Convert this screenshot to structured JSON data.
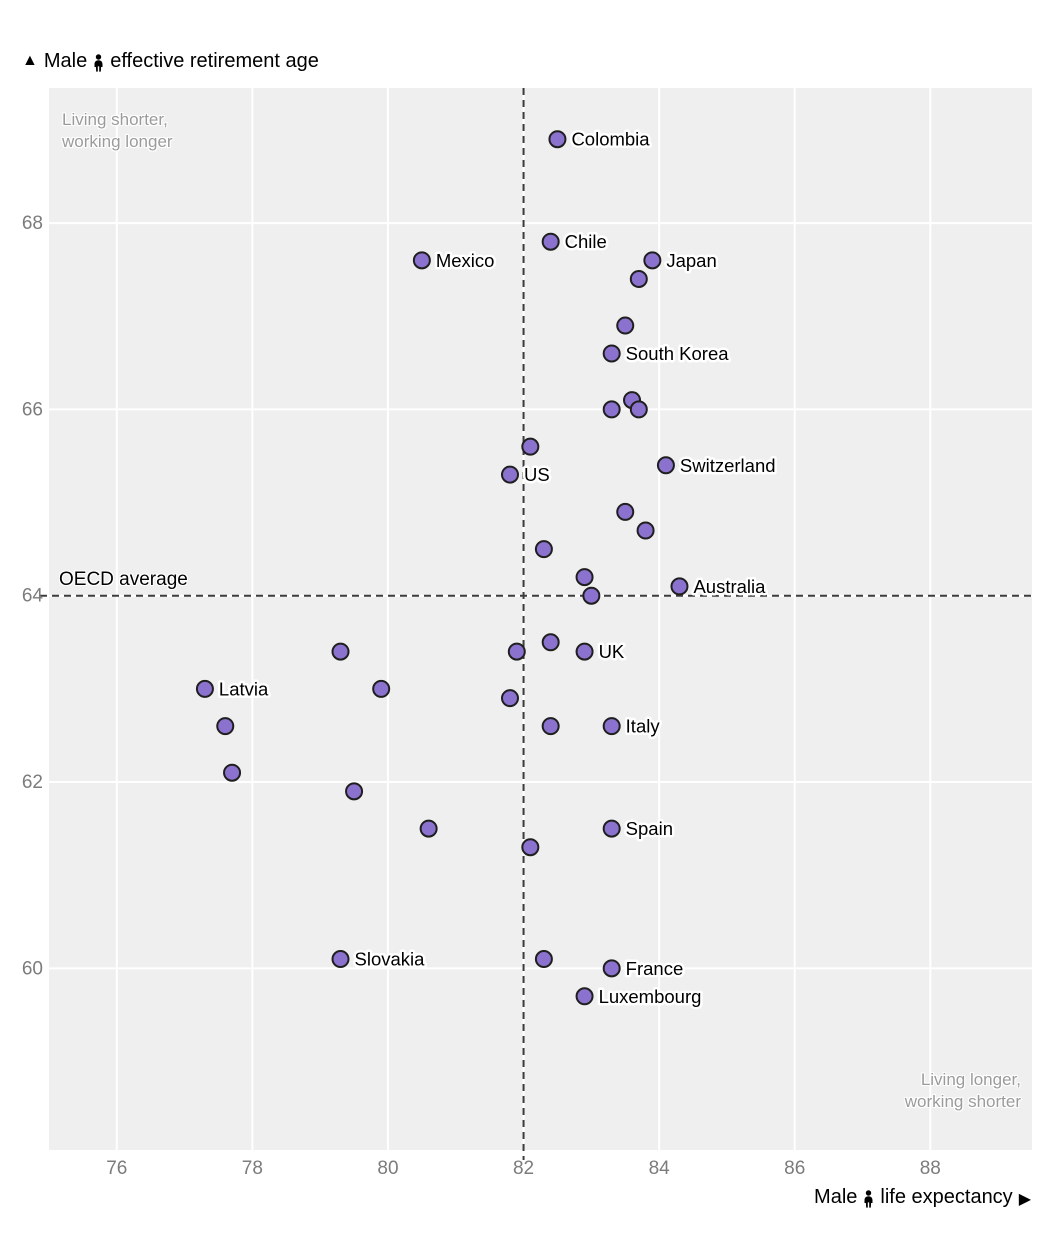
{
  "title": {
    "arrow": "▲",
    "male": "Male",
    "rest": "effective retirement age"
  },
  "x_axis_label": {
    "male": "Male",
    "rest": "life expectancy",
    "arrow": "▶"
  },
  "annotations": {
    "top_left_line1": "Living shorter,",
    "top_left_line2": "working longer",
    "bottom_right_line1": "Living longer,",
    "bottom_right_line2": "working shorter",
    "oecd_average": "OECD average"
  },
  "colors": {
    "plot_bg": "#efefef",
    "gridline": "#ffffff",
    "dashed_line": "#3c3c3c",
    "tick_text": "#7c7c7c",
    "point_fill": "#8b72ce",
    "point_stroke": "#1f1f1f",
    "label_text": "#000000",
    "annotation_text": "#9b9b9b"
  },
  "chart_data": {
    "type": "scatter",
    "x_label": "Male life expectancy",
    "y_label": "Male effective retirement age",
    "x_ticks": [
      76,
      78,
      80,
      82,
      84,
      86,
      88
    ],
    "y_ticks": [
      60,
      62,
      64,
      66,
      68
    ],
    "x_range": [
      75.0,
      89.5
    ],
    "y_range": [
      58.05,
      69.45
    ],
    "grid": true,
    "oecd_average": {
      "x": 82.0,
      "y": 64.0
    },
    "points": [
      {
        "label": "Colombia",
        "x": 82.5,
        "y": 68.9
      },
      {
        "label": "Chile",
        "x": 82.4,
        "y": 67.8
      },
      {
        "label": "Mexico",
        "x": 80.5,
        "y": 67.6
      },
      {
        "label": "Japan",
        "x": 83.9,
        "y": 67.6
      },
      {
        "label": "",
        "x": 83.7,
        "y": 67.4
      },
      {
        "label": "",
        "x": 83.5,
        "y": 66.9
      },
      {
        "label": "South Korea",
        "x": 83.3,
        "y": 66.6
      },
      {
        "label": "",
        "x": 83.6,
        "y": 66.1
      },
      {
        "label": "",
        "x": 83.3,
        "y": 66.0
      },
      {
        "label": "",
        "x": 83.7,
        "y": 66.0
      },
      {
        "label": "",
        "x": 82.1,
        "y": 65.6
      },
      {
        "label": "Switzerland",
        "x": 84.1,
        "y": 65.4
      },
      {
        "label": "US",
        "x": 81.8,
        "y": 65.3
      },
      {
        "label": "",
        "x": 83.5,
        "y": 64.9
      },
      {
        "label": "",
        "x": 83.8,
        "y": 64.7
      },
      {
        "label": "",
        "x": 82.3,
        "y": 64.5
      },
      {
        "label": "",
        "x": 82.9,
        "y": 64.2
      },
      {
        "label": "Australia",
        "x": 84.3,
        "y": 64.1
      },
      {
        "label": "",
        "x": 83.0,
        "y": 64.0
      },
      {
        "label": "",
        "x": 82.4,
        "y": 63.5
      },
      {
        "label": "",
        "x": 79.3,
        "y": 63.4
      },
      {
        "label": "",
        "x": 81.9,
        "y": 63.4
      },
      {
        "label": "UK",
        "x": 82.9,
        "y": 63.4
      },
      {
        "label": "Latvia",
        "x": 77.3,
        "y": 63.0
      },
      {
        "label": "",
        "x": 79.9,
        "y": 63.0
      },
      {
        "label": "",
        "x": 81.8,
        "y": 62.9
      },
      {
        "label": "",
        "x": 77.6,
        "y": 62.6
      },
      {
        "label": "",
        "x": 82.4,
        "y": 62.6
      },
      {
        "label": "Italy",
        "x": 83.3,
        "y": 62.6
      },
      {
        "label": "",
        "x": 77.7,
        "y": 62.1
      },
      {
        "label": "",
        "x": 79.5,
        "y": 61.9
      },
      {
        "label": "",
        "x": 80.6,
        "y": 61.5
      },
      {
        "label": "Spain",
        "x": 83.3,
        "y": 61.5
      },
      {
        "label": "",
        "x": 82.1,
        "y": 61.3
      },
      {
        "label": "Slovakia",
        "x": 79.3,
        "y": 60.1
      },
      {
        "label": "",
        "x": 82.3,
        "y": 60.1
      },
      {
        "label": "France",
        "x": 83.3,
        "y": 60.0
      },
      {
        "label": "Luxembourg",
        "x": 82.9,
        "y": 59.7
      }
    ]
  }
}
